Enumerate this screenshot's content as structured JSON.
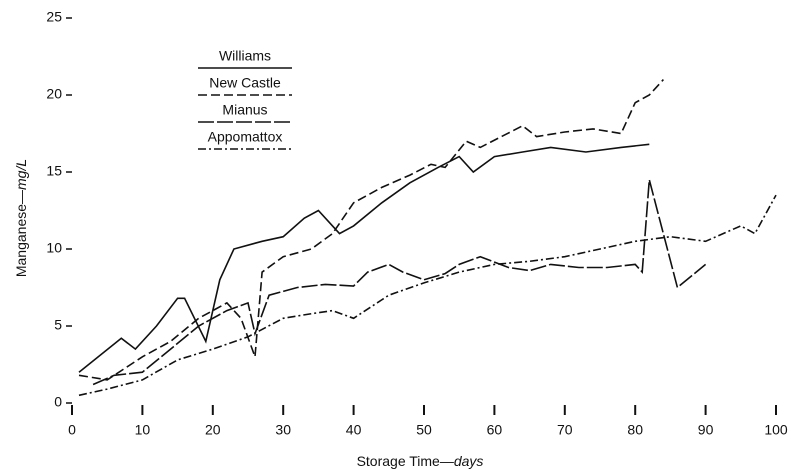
{
  "chart_data": {
    "type": "line",
    "x_label": {
      "text": "Storage Time—",
      "unit": "days"
    },
    "y_label": {
      "text": "Manganese—",
      "unit": "mg/L"
    },
    "xlim": [
      0,
      100
    ],
    "xticks": [
      0,
      10,
      20,
      30,
      40,
      50,
      60,
      70,
      80,
      90,
      100
    ],
    "ylim": [
      0,
      25
    ],
    "yticks": [
      0,
      5,
      10,
      15,
      20,
      25
    ],
    "series": [
      {
        "name": "Williams",
        "color": "#111",
        "style": "solid",
        "x": [
          1,
          7,
          9,
          12,
          15,
          16,
          19,
          21,
          23,
          27,
          30,
          33,
          35,
          38,
          40,
          44,
          48,
          52,
          55,
          57,
          60,
          64,
          68,
          73,
          78,
          82
        ],
        "values": [
          2,
          4.2,
          3.5,
          5,
          6.8,
          6.8,
          4,
          8,
          10,
          10.5,
          10.8,
          12,
          12.5,
          11,
          11.5,
          13,
          14.3,
          15.3,
          16,
          15,
          16,
          16.3,
          16.6,
          16.3,
          16.6,
          16.8
        ]
      },
      {
        "name": "New Castle",
        "color": "#111",
        "style": "dashed",
        "x": [
          1,
          5,
          10,
          14,
          18,
          22,
          24,
          26,
          27,
          30,
          34,
          37,
          40,
          44,
          48,
          51,
          53,
          56,
          58,
          61,
          64,
          66,
          70,
          74,
          78,
          80,
          82,
          84
        ],
        "values": [
          1.8,
          1.5,
          3,
          4,
          5.5,
          6.5,
          5.5,
          3,
          8.5,
          9.5,
          10,
          11,
          13,
          14,
          14.8,
          15.5,
          15.3,
          17,
          16.6,
          17.3,
          18,
          17.3,
          17.6,
          17.8,
          17.5,
          19.5,
          20,
          21
        ]
      },
      {
        "name": "Mianus",
        "color": "#111",
        "style": "longdash",
        "x": [
          3,
          6,
          10,
          14,
          18,
          22,
          25,
          26,
          28,
          32,
          36,
          40,
          42,
          45,
          47,
          50,
          53,
          55,
          58,
          62,
          65,
          68,
          72,
          76,
          80,
          81,
          82,
          86,
          90
        ],
        "values": [
          1.2,
          1.8,
          2,
          3.5,
          5,
          6,
          6.5,
          4.5,
          7,
          7.5,
          7.7,
          7.6,
          8.5,
          9,
          8.5,
          8,
          8.4,
          9,
          9.5,
          8.8,
          8.6,
          9,
          8.8,
          8.8,
          9,
          8.5,
          14.5,
          7.5,
          9
        ]
      },
      {
        "name": "Appomattox",
        "color": "#111",
        "style": "dashdot",
        "x": [
          1,
          5,
          10,
          15,
          20,
          25,
          30,
          34,
          37,
          40,
          45,
          50,
          55,
          60,
          65,
          70,
          75,
          80,
          85,
          90,
          95,
          97,
          100
        ],
        "values": [
          0.5,
          0.9,
          1.5,
          2.8,
          3.5,
          4.3,
          5.5,
          5.8,
          6,
          5.5,
          7,
          7.8,
          8.5,
          9,
          9.2,
          9.5,
          10,
          10.5,
          10.8,
          10.5,
          11.5,
          11,
          13.5
        ]
      }
    ]
  }
}
